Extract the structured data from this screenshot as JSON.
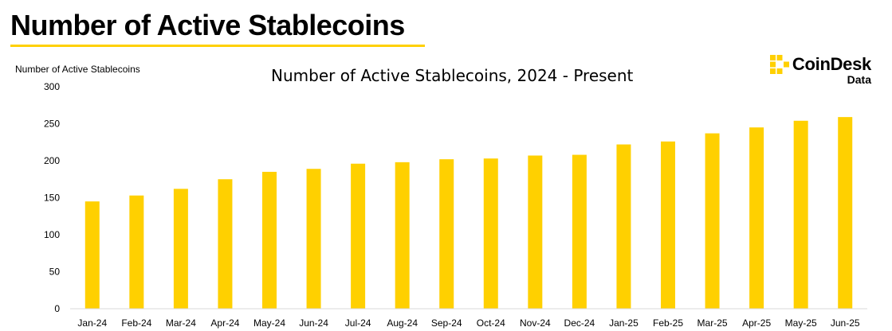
{
  "heading": "Number of Active Stablecoins",
  "brand": {
    "name": "CoinDesk",
    "sub": "Data"
  },
  "colors": {
    "accent": "#FFD000",
    "axis": "#D9D9D9",
    "text": "#000000"
  },
  "chart_data": {
    "type": "bar",
    "title": "Number of Active Stablecoins, 2024 - Present",
    "xlabel": "",
    "ylabel": "Number of Active Stablecoins",
    "ylim": [
      0,
      300
    ],
    "yticks": [
      0,
      50,
      100,
      150,
      200,
      250,
      300
    ],
    "grid": false,
    "categories": [
      "Jan-24",
      "Feb-24",
      "Mar-24",
      "Apr-24",
      "May-24",
      "Jun-24",
      "Jul-24",
      "Aug-24",
      "Sep-24",
      "Oct-24",
      "Nov-24",
      "Dec-24",
      "Jan-25",
      "Feb-25",
      "Mar-25",
      "Apr-25",
      "May-25",
      "Jun-25"
    ],
    "values": [
      145,
      153,
      162,
      175,
      185,
      189,
      196,
      198,
      202,
      203,
      207,
      208,
      222,
      226,
      237,
      245,
      254,
      259
    ]
  }
}
